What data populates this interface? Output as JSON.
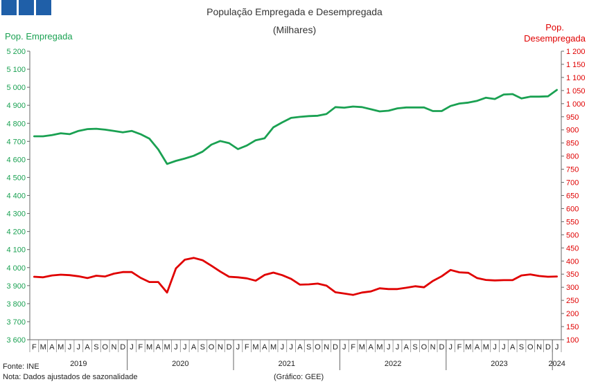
{
  "logo": {
    "color": "#1f5fa8"
  },
  "chart_data": {
    "type": "line",
    "title": "População Empregada e Desempregada",
    "subtitle": "(Milhares)",
    "ylabel_left": "Pop. Empregada",
    "ylabel_right_line1": "Pop.",
    "ylabel_right_line2": "Desempregada",
    "colors": {
      "left": "#1aa152",
      "right": "#e00000"
    },
    "y_left": {
      "min": 3600,
      "max": 5200,
      "step": 100
    },
    "y_right": {
      "min": 100,
      "max": 1200,
      "step": 50
    },
    "grid": false,
    "month_labels": [
      "F",
      "M",
      "A",
      "M",
      "J",
      "J",
      "A",
      "S",
      "O",
      "N",
      "D",
      "J",
      "F",
      "M",
      "A",
      "M",
      "J",
      "J",
      "A",
      "S",
      "O",
      "N",
      "D",
      "J",
      "F",
      "M",
      "A",
      "M",
      "J",
      "J",
      "A",
      "S",
      "O",
      "N",
      "D",
      "J",
      "F",
      "M",
      "A",
      "M",
      "J",
      "J",
      "A",
      "S",
      "O",
      "N",
      "D",
      "J",
      "F",
      "M",
      "A",
      "M",
      "J",
      "J",
      "A",
      "S",
      "O",
      "N",
      "D",
      "J"
    ],
    "years": [
      {
        "label": "2019",
        "months": 11
      },
      {
        "label": "2020",
        "months": 12
      },
      {
        "label": "2021",
        "months": 12
      },
      {
        "label": "2022",
        "months": 12
      },
      {
        "label": "2023",
        "months": 12
      },
      {
        "label": "2024",
        "months": 1
      }
    ],
    "series": [
      {
        "name": "Pop. Empregada",
        "axis": "left",
        "values": [
          4728,
          4728,
          4735,
          4745,
          4740,
          4758,
          4768,
          4770,
          4765,
          4758,
          4750,
          4758,
          4740,
          4715,
          4655,
          4575,
          4592,
          4605,
          4620,
          4643,
          4682,
          4702,
          4690,
          4657,
          4677,
          4706,
          4717,
          4778,
          4805,
          4830,
          4836,
          4840,
          4842,
          4852,
          4890,
          4887,
          4893,
          4890,
          4878,
          4866,
          4870,
          4883,
          4888,
          4888,
          4888,
          4868,
          4868,
          4896,
          4910,
          4915,
          4925,
          4942,
          4935,
          4960,
          4962,
          4938,
          4948,
          4948,
          4950,
          4985
        ]
      },
      {
        "name": "Pop. Desempregada",
        "axis": "right",
        "values": [
          340,
          338,
          345,
          348,
          346,
          342,
          335,
          344,
          341,
          352,
          358,
          358,
          336,
          320,
          320,
          280,
          372,
          405,
          412,
          403,
          382,
          360,
          340,
          338,
          334,
          325,
          347,
          356,
          346,
          332,
          310,
          311,
          314,
          306,
          281,
          276,
          271,
          280,
          284,
          296,
          293,
          293,
          298,
          304,
          300,
          324,
          342,
          366,
          357,
          355,
          335,
          328,
          326,
          327,
          327,
          345,
          349,
          343,
          340,
          341
        ]
      }
    ]
  },
  "footer": {
    "source": "Fonte: INE",
    "note": "Nota: Dados ajustados de sazonalidade",
    "credit": "(Gráfico: GEE)"
  }
}
